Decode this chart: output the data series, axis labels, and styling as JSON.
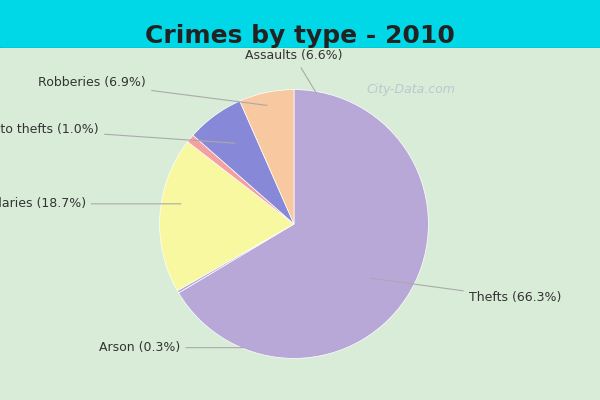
{
  "title": "Crimes by type - 2010",
  "slices": [
    {
      "label": "Thefts",
      "pct": 66.3,
      "color": "#b8a8d8"
    },
    {
      "label": "Arson",
      "pct": 0.3,
      "color": "#b8a8d8"
    },
    {
      "label": "Burglaries",
      "pct": 18.7,
      "color": "#f8f8a0"
    },
    {
      "label": "Auto thefts",
      "pct": 1.0,
      "color": "#f4a0a0"
    },
    {
      "label": "Robberies",
      "pct": 6.9,
      "color": "#8888d8"
    },
    {
      "label": "Assaults",
      "pct": 6.6,
      "color": "#f8c8a0"
    }
  ],
  "background_top": "#00d8e8",
  "background_main": "#d8ecd8",
  "title_fontsize": 18,
  "label_fontsize": 9,
  "watermark": "City-Data.com"
}
